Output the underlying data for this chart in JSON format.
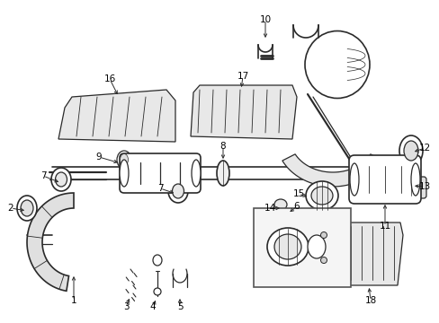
{
  "bg_color": "#ffffff",
  "line_color": "#2a2a2a",
  "fig_w": 4.89,
  "fig_h": 3.6,
  "dpi": 100
}
